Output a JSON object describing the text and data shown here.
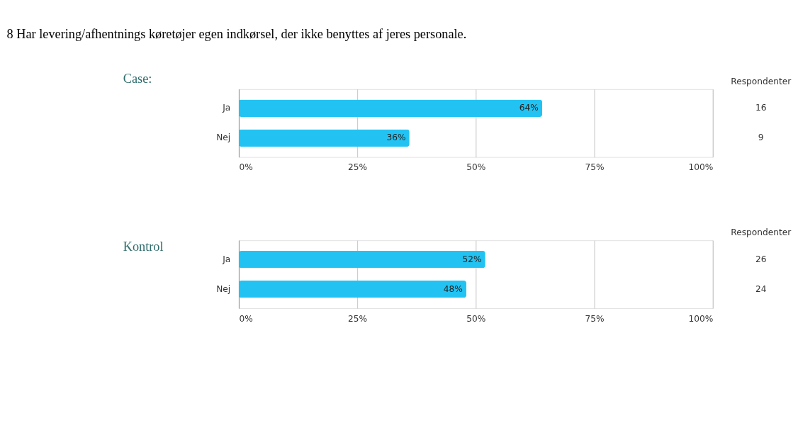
{
  "chart_data": [
    {
      "type": "bar",
      "orientation": "horizontal",
      "title": "8 Har levering/afhentnings køretøjer egen indkørsel, der ikke benyttes af jeres personale.",
      "subtitle": "Case:",
      "categories": [
        "Ja",
        "Nej"
      ],
      "values": [
        64,
        36
      ],
      "color": "#22c3f2",
      "value_labels": [
        "64%",
        "36%"
      ],
      "xlim": [
        0,
        100
      ],
      "xticks": [
        {
          "value": 0,
          "label": "0%"
        },
        {
          "value": 25,
          "label": "25%"
        },
        {
          "value": 50,
          "label": "50%"
        },
        {
          "value": 75,
          "label": "75%"
        },
        {
          "value": 100,
          "label": "100%"
        }
      ],
      "grid": "x",
      "annotations": [
        "Respondenter",
        "16",
        "9"
      ]
    },
    {
      "type": "bar",
      "orientation": "horizontal",
      "subtitle": "Kontrol",
      "categories": [
        "Ja",
        "Nej"
      ],
      "values": [
        52,
        48
      ],
      "color": "#22c3f2",
      "value_labels": [
        "52%",
        "48%"
      ],
      "xlim": [
        0,
        100
      ],
      "xticks": [
        {
          "value": 0,
          "label": "0%"
        },
        {
          "value": 25,
          "label": "25%"
        },
        {
          "value": 50,
          "label": "50%"
        },
        {
          "value": 75,
          "label": "75%"
        },
        {
          "value": 100,
          "label": "100%"
        }
      ],
      "grid": "x",
      "annotations": [
        "Respondenter",
        "26",
        "24"
      ]
    }
  ]
}
